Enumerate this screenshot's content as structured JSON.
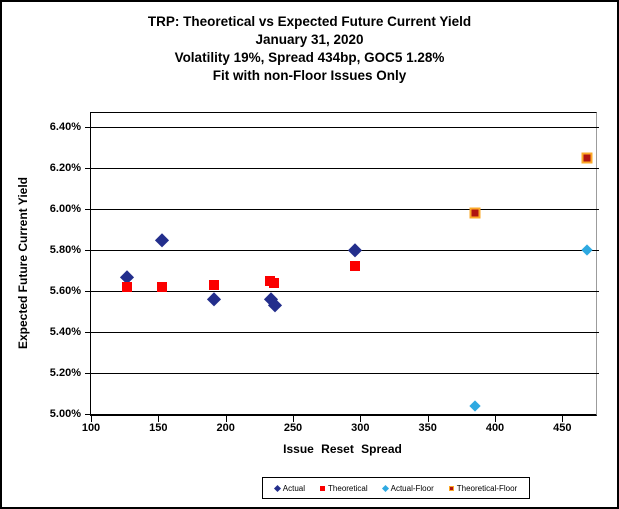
{
  "title": {
    "line1": "TRP: Theoretical vs Expected Future Current Yield",
    "line2": "January 31, 2020",
    "line3": "Volatility 19%, Spread 434bp, GOC5 1.28%",
    "line4": "Fit with non-Floor Issues Only"
  },
  "chart_data": {
    "type": "scatter",
    "title": "TRP: Theoretical vs Expected Future Current Yield",
    "subtitle": [
      "January 31, 2020",
      "Volatility 19%, Spread 434bp, GOC5 1.28%",
      "Fit with non-Floor Issues Only"
    ],
    "xlabel": "Issue Reset Spread",
    "ylabel": "Expected Future Current Yield",
    "xlim": [
      100,
      475
    ],
    "ylim": [
      5.0,
      6.468
    ],
    "x_ticks": [
      100,
      150,
      200,
      250,
      300,
      350,
      400,
      450
    ],
    "y_ticks": [
      5.0,
      5.2,
      5.4,
      5.6,
      5.8,
      6.0,
      6.2,
      6.4
    ],
    "y_tick_labels": [
      "5.00%",
      "5.20%",
      "5.40%",
      "5.60%",
      "5.80%",
      "6.00%",
      "6.20%",
      "6.40%"
    ],
    "grid": "horizontal",
    "legend_position": "bottom",
    "series": [
      {
        "name": "Actual",
        "marker": "diamond",
        "color": "#232e8c",
        "points": [
          [
            127,
            5.67
          ],
          [
            153,
            5.85
          ],
          [
            191,
            5.56
          ],
          [
            234,
            5.56
          ],
          [
            237,
            5.53
          ],
          [
            296,
            5.8
          ]
        ]
      },
      {
        "name": "Theoretical",
        "marker": "square",
        "color": "#fb0000",
        "points": [
          [
            127,
            5.62
          ],
          [
            153,
            5.62
          ],
          [
            191,
            5.63
          ],
          [
            233,
            5.65
          ],
          [
            236,
            5.64
          ],
          [
            296,
            5.72
          ]
        ]
      },
      {
        "name": "Actual-Floor",
        "marker": "diamond",
        "color": "#2ea9e1",
        "points": [
          [
            385,
            5.04
          ],
          [
            468,
            5.8
          ]
        ]
      },
      {
        "name": "Theoretical-Floor",
        "marker": "square",
        "color": "#b01410",
        "border_color": "#fba828",
        "points": [
          [
            385,
            5.98
          ],
          [
            468,
            6.25
          ]
        ]
      }
    ]
  }
}
